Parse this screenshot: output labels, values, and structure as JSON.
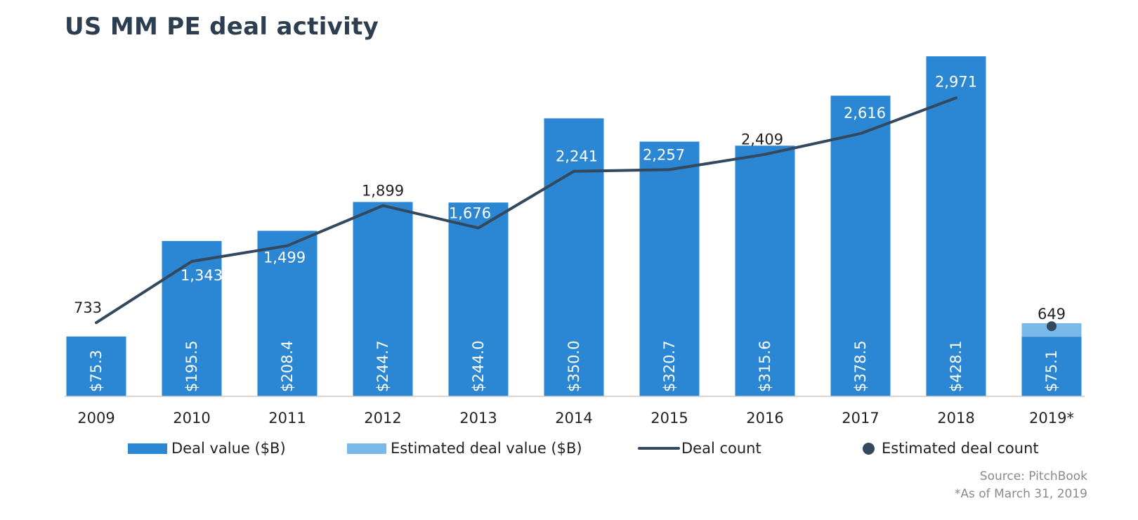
{
  "title": "US MM PE deal activity",
  "chart_data": {
    "type": "bar",
    "categories": [
      "2009",
      "2010",
      "2011",
      "2012",
      "2013",
      "2014",
      "2015",
      "2016",
      "2017",
      "2018",
      "2019*"
    ],
    "series": [
      {
        "name": "Deal value ($B)",
        "type": "bar",
        "values": [
          75.3,
          195.5,
          208.4,
          244.7,
          244.0,
          350.0,
          320.7,
          315.6,
          378.5,
          428.1,
          75.1
        ],
        "labels": [
          "$75.3",
          "$195.5",
          "$208.4",
          "$244.7",
          "$244.0",
          "$350.0",
          "$320.7",
          "$315.6",
          "$378.5",
          "$428.1",
          "$75.1"
        ],
        "color": "#2b87d3"
      },
      {
        "name": "Estimated deal value ($B)",
        "type": "bar-stacked",
        "values": [
          null,
          null,
          null,
          null,
          null,
          null,
          null,
          null,
          null,
          null,
          17
        ],
        "color": "#79b9ea"
      },
      {
        "name": "Deal count",
        "type": "line",
        "values": [
          733,
          1343,
          1499,
          1899,
          1676,
          2241,
          2257,
          2409,
          2616,
          2971,
          null
        ],
        "labels": [
          "733",
          "1,343",
          "1,499",
          "1,899",
          "1,676",
          "2,241",
          "2,257",
          "2,409",
          "2,616",
          "2,971",
          ""
        ],
        "color": "#34495e"
      },
      {
        "name": "Estimated deal count",
        "type": "marker",
        "values": [
          null,
          null,
          null,
          null,
          null,
          null,
          null,
          null,
          null,
          null,
          649
        ],
        "labels": [
          "",
          "",
          "",
          "",
          "",
          "",
          "",
          "",
          "",
          "",
          "649"
        ],
        "color": "#34495e"
      }
    ],
    "xlabel": "",
    "ylabel": "",
    "ylim_value": [
      0,
      430
    ],
    "ylim_count": [
      0,
      3400
    ],
    "grid": false,
    "legend_position": "bottom"
  },
  "source": "Source: PitchBook",
  "footnote": "*As of March 31, 2019"
}
